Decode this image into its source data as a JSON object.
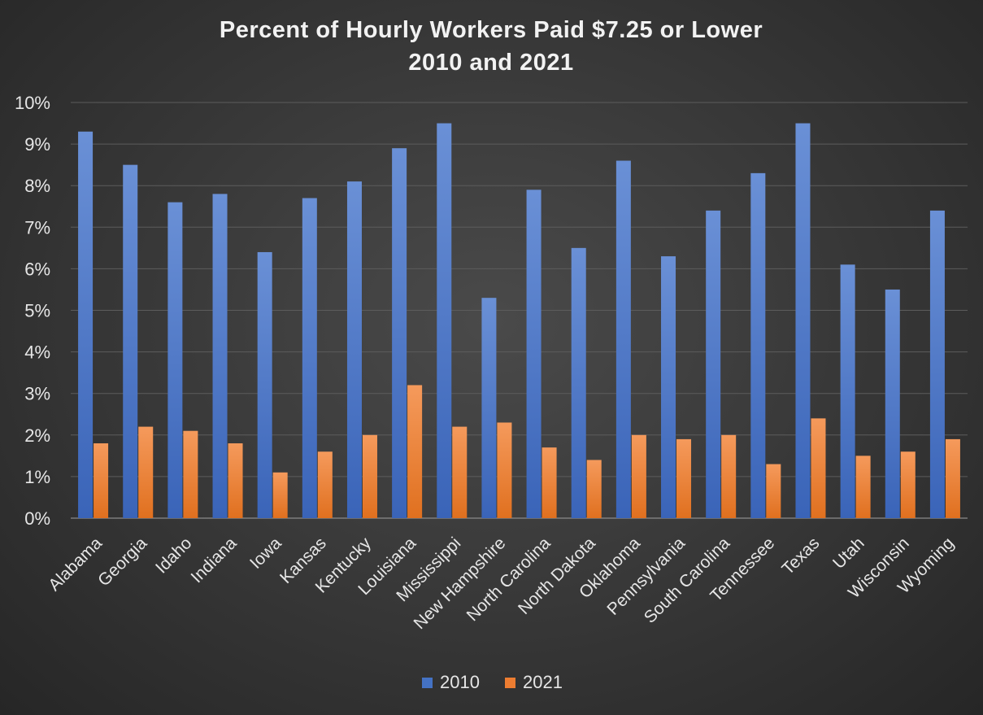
{
  "chart_data": {
    "type": "bar",
    "title": "Percent of Hourly Workers Paid $7.25 or Lower",
    "subtitle": "2010 and 2021",
    "xlabel": "",
    "ylabel": "",
    "ylim": [
      0,
      10
    ],
    "yticks": [
      "0%",
      "1%",
      "2%",
      "3%",
      "4%",
      "5%",
      "6%",
      "7%",
      "8%",
      "9%",
      "10%"
    ],
    "grid": true,
    "legend_position": "bottom",
    "categories": [
      "Alabama",
      "Georgia",
      "Idaho",
      "Indiana",
      "Iowa",
      "Kansas",
      "Kentucky",
      "Louisiana",
      "Mississippi",
      "New Hampshire",
      "North Carolina",
      "North Dakota",
      "Oklahoma",
      "Pennsylvania",
      "South Carolina",
      "Tennessee",
      "Texas",
      "Utah",
      "Wisconsin",
      "Wyoming"
    ],
    "series": [
      {
        "name": "2010",
        "color": "#4472c4",
        "values": [
          9.3,
          8.5,
          7.6,
          7.8,
          6.4,
          7.7,
          8.1,
          8.9,
          9.5,
          5.3,
          7.9,
          6.5,
          8.6,
          6.3,
          7.4,
          8.3,
          9.5,
          6.1,
          5.5,
          7.4
        ]
      },
      {
        "name": "2021",
        "color": "#ed7d31",
        "values": [
          1.8,
          2.2,
          2.1,
          1.8,
          1.1,
          1.6,
          2.0,
          3.2,
          2.2,
          2.3,
          1.7,
          1.4,
          2.0,
          1.9,
          2.0,
          1.3,
          2.4,
          1.5,
          1.6,
          1.9
        ]
      }
    ]
  }
}
